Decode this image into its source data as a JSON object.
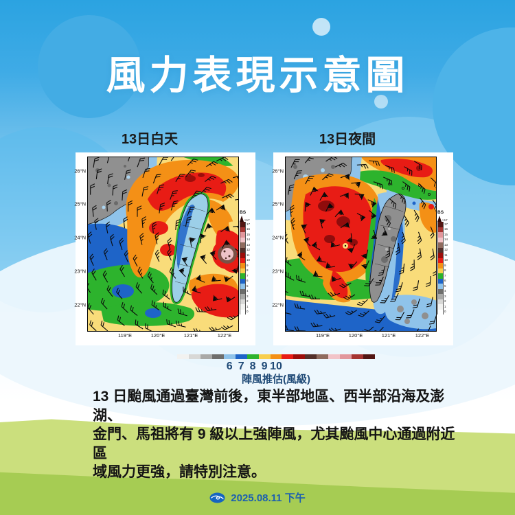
{
  "header": {
    "title": "風力表現示意圖"
  },
  "panels": [
    {
      "id": "day",
      "title": "13日白天"
    },
    {
      "id": "night",
      "title": "13日夜間"
    }
  ],
  "map_axes": {
    "lat_ticks": [
      "26°N",
      "25°N",
      "24°N",
      "23°N",
      "22°N"
    ],
    "lon_ticks": [
      "119°E",
      "120°E",
      "121°E",
      "122°E"
    ]
  },
  "colorbar": {
    "label": "BS",
    "arrow_label": ">17",
    "ticks_top_to_bottom": [
      "17",
      "16",
      "15",
      "14",
      "13",
      "12",
      "11",
      "10",
      "9",
      "8",
      "7",
      "6",
      "5",
      "4",
      "3",
      "2",
      "1",
      "0"
    ]
  },
  "legend": {
    "numbers": [
      "6",
      "7",
      "8",
      "9",
      "10"
    ],
    "caption": "陣風推估(風級)",
    "palette": [
      "#f2f2f0",
      "#d8d8d6",
      "#a9a9a7",
      "#6e6e6c",
      "#8fc3ea",
      "#1e64c8",
      "#2db32d",
      "#f8cf4e",
      "#f49016",
      "#e81c15",
      "#9c0d0a",
      "#53302a",
      "#8f6b5e",
      "#f2c4c9",
      "#e2979c",
      "#a63431",
      "#531613"
    ],
    "arrow_color": "#2e0b09",
    "zero_color": "#ffffff"
  },
  "description": {
    "lines": [
      "13 日颱風通過臺灣前後，東半部地區、西半部沿海及澎湖、",
      "金門、馬祖將有 9 級以上強陣風，尤其颱風中心通過附近區",
      "域風力更強，請特別注意。"
    ]
  },
  "footer": {
    "date": "2025.08.11 下午",
    "logo": "cwa-logo"
  },
  "colors": {
    "sky_top": "#2ba3e1",
    "hill_light": "#cbdf7d",
    "hill_dark": "#a6cc53",
    "navy_text": "#1e4976",
    "footer_text": "#1b5fb0",
    "title_text": "#ffffff",
    "map_gray_land": "#909090",
    "map_light_blue": "#8fc3ea",
    "map_blue": "#1e64c8",
    "map_green": "#2db32d",
    "map_yellow": "#f9dc7a",
    "map_orange": "#f49016",
    "map_red": "#e81c15",
    "map_dark_red": "#9c0d0a",
    "map_brown": "#7a5146",
    "map_pink": "#eec3c8"
  }
}
